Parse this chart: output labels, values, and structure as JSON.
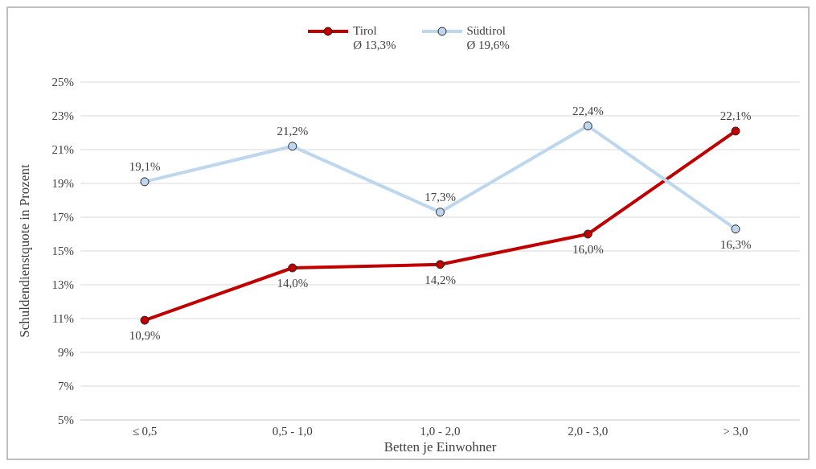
{
  "chart_data": {
    "type": "line",
    "xlabel": "Betten je Einwohner",
    "ylabel": "Schuldendienstquote in Prozent",
    "categories": [
      "≤ 0,5",
      "0,5 - 1,0",
      "1,0 - 2,0",
      "2,0 - 3,0",
      "> 3,0"
    ],
    "series": [
      {
        "name": "Tirol\nØ 13,3%",
        "color": "#c00000",
        "values": [
          10.9,
          14.0,
          14.2,
          16.0,
          22.1
        ],
        "value_labels": [
          "10,9%",
          "14,0%",
          "14,2%",
          "16,0%",
          "22,1%"
        ]
      },
      {
        "name": "Südtirol\nØ 19,6%",
        "color": "#bdd7ee",
        "values": [
          19.1,
          21.2,
          17.3,
          22.4,
          16.3
        ],
        "value_labels": [
          "19,1%",
          "21,2%",
          "17,3%",
          "22,4%",
          "16,3%"
        ]
      }
    ],
    "ylim": [
      5,
      25
    ],
    "yticks": [
      {
        "value": 5,
        "label": "5%"
      },
      {
        "value": 7,
        "label": "7%"
      },
      {
        "value": 9,
        "label": "9%"
      },
      {
        "value": 11,
        "label": "11%"
      },
      {
        "value": 13,
        "label": "13%"
      },
      {
        "value": 15,
        "label": "15%"
      },
      {
        "value": 17,
        "label": "17%"
      },
      {
        "value": 19,
        "label": "19%"
      },
      {
        "value": 21,
        "label": "21%"
      },
      {
        "value": 23,
        "label": "23%"
      },
      {
        "value": 25,
        "label": "25%"
      }
    ],
    "grid": "y",
    "legend": "top",
    "marker": "circle",
    "line_style": "solid"
  }
}
